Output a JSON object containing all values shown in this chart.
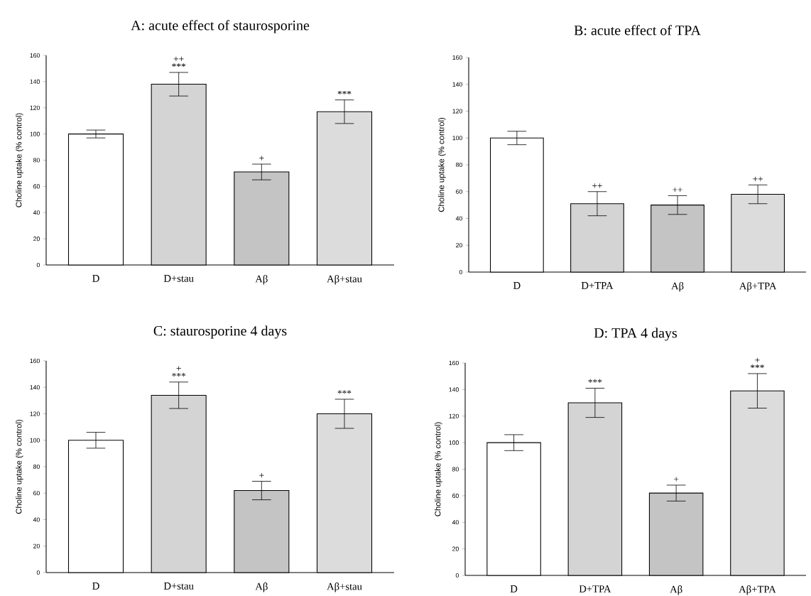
{
  "chart_data": [
    {
      "type": "bar",
      "title": "A: acute effect of staurosporine",
      "ylabel": "Choline uptake (% control)",
      "categories": [
        "D",
        "D+stau",
        "Aβ",
        "Aβ+stau"
      ],
      "values": [
        100,
        138,
        71,
        117
      ],
      "errors": [
        3,
        9,
        6,
        9
      ],
      "colors": [
        "#ffffff",
        "#d4d4d4",
        "#c4c4c4",
        "#dcdcdc"
      ],
      "ylim": [
        0,
        160
      ],
      "yticks": [
        0,
        20,
        40,
        60,
        80,
        100,
        120,
        140,
        160
      ],
      "annotations": [
        {
          "text": "***",
          "x": "D+stau",
          "y": 147
        },
        {
          "text": "++",
          "x": "D+stau",
          "y": 147
        },
        {
          "text": "+",
          "x": "Aβ",
          "y": 77
        },
        {
          "text": "***",
          "x": "Aβ+stau",
          "y": 126
        }
      ]
    },
    {
      "type": "bar",
      "title": "B: acute effect of TPA",
      "ylabel": "Choline uptake (% control)",
      "categories": [
        "D",
        "D+TPA",
        "Aβ",
        "Aβ+TPA"
      ],
      "values": [
        100,
        51,
        50,
        58
      ],
      "errors": [
        5,
        9,
        7,
        7
      ],
      "colors": [
        "#ffffff",
        "#d4d4d4",
        "#c4c4c4",
        "#dcdcdc"
      ],
      "ylim": [
        0,
        160
      ],
      "yticks": [
        0,
        20,
        40,
        60,
        80,
        100,
        120,
        140,
        160
      ],
      "annotations": [
        {
          "text": "++",
          "x": "D+TPA",
          "y": 60
        },
        {
          "text": "++",
          "x": "Aβ",
          "y": 57
        },
        {
          "text": "++",
          "x": "Aβ+TPA",
          "y": 65
        }
      ]
    },
    {
      "type": "bar",
      "title": "C: staurosporine 4 days",
      "ylabel": "Choline uptake (% control)",
      "categories": [
        "D",
        "D+stau",
        "Aβ",
        "Aβ+stau"
      ],
      "values": [
        100,
        134,
        62,
        120
      ],
      "errors": [
        6,
        10,
        7,
        11
      ],
      "colors": [
        "#ffffff",
        "#d4d4d4",
        "#c4c4c4",
        "#dcdcdc"
      ],
      "ylim": [
        0,
        160
      ],
      "yticks": [
        0,
        20,
        40,
        60,
        80,
        100,
        120,
        140,
        160
      ],
      "annotations": [
        {
          "text": "***",
          "x": "D+stau",
          "y": 144
        },
        {
          "text": "+",
          "x": "D+stau",
          "y": 144
        },
        {
          "text": "+",
          "x": "Aβ",
          "y": 69
        },
        {
          "text": "***",
          "x": "Aβ+stau",
          "y": 131
        }
      ]
    },
    {
      "type": "bar",
      "title": "D: TPA 4 days",
      "ylabel": "Choline uptake (% control)",
      "categories": [
        "D",
        "D+TPA",
        "Aβ",
        "Aβ+TPA"
      ],
      "values": [
        100,
        130,
        62,
        139
      ],
      "errors": [
        6,
        11,
        6,
        13
      ],
      "colors": [
        "#ffffff",
        "#d4d4d4",
        "#c4c4c4",
        "#dcdcdc"
      ],
      "ylim": [
        0,
        160
      ],
      "yticks": [
        0,
        20,
        40,
        60,
        80,
        100,
        120,
        140,
        160
      ],
      "annotations": [
        {
          "text": "***",
          "x": "D+TPA",
          "y": 141
        },
        {
          "text": "+",
          "x": "Aβ",
          "y": 68
        },
        {
          "text": "***",
          "x": "Aβ+TPA",
          "y": 152
        },
        {
          "text": "+",
          "x": "Aβ+TPA",
          "y": 152
        }
      ]
    }
  ]
}
